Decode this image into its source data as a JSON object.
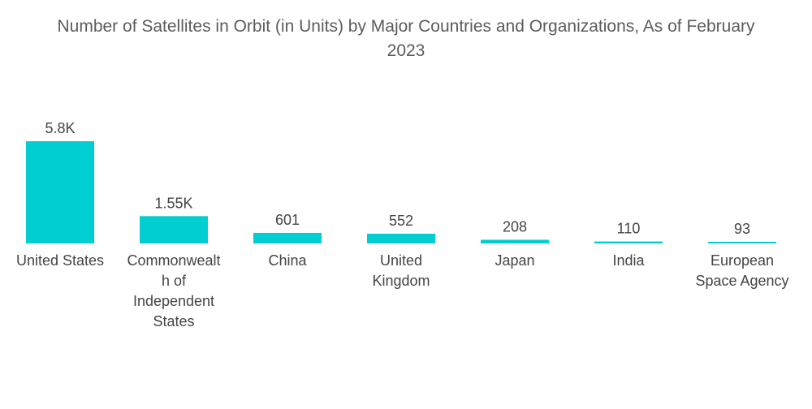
{
  "title_line1": "Number of Satellites in Orbit (in Units) by Major Countries and Organizations, As of February",
  "title_line2": "2023",
  "colors": {
    "bar": "#00ced1",
    "text": "#444444"
  },
  "chart_data": {
    "type": "bar",
    "title": "Number of Satellites in Orbit (in Units) by Major Countries and Organizations, As of February 2023",
    "xlabel": "",
    "ylabel": "",
    "ylim": [
      0,
      5800
    ],
    "grid": false,
    "categories": [
      [
        "United States"
      ],
      [
        "Commonwealt",
        "h of",
        "Independent",
        "States"
      ],
      [
        "China"
      ],
      [
        "United",
        "Kingdom"
      ],
      [
        "Japan"
      ],
      [
        "India"
      ],
      [
        "European",
        "Space Agency"
      ]
    ],
    "values": [
      5800,
      1550,
      601,
      552,
      208,
      110,
      93
    ],
    "value_labels": [
      "5.8K",
      "1.55K",
      "601",
      "552",
      "208",
      "110",
      "93"
    ]
  }
}
